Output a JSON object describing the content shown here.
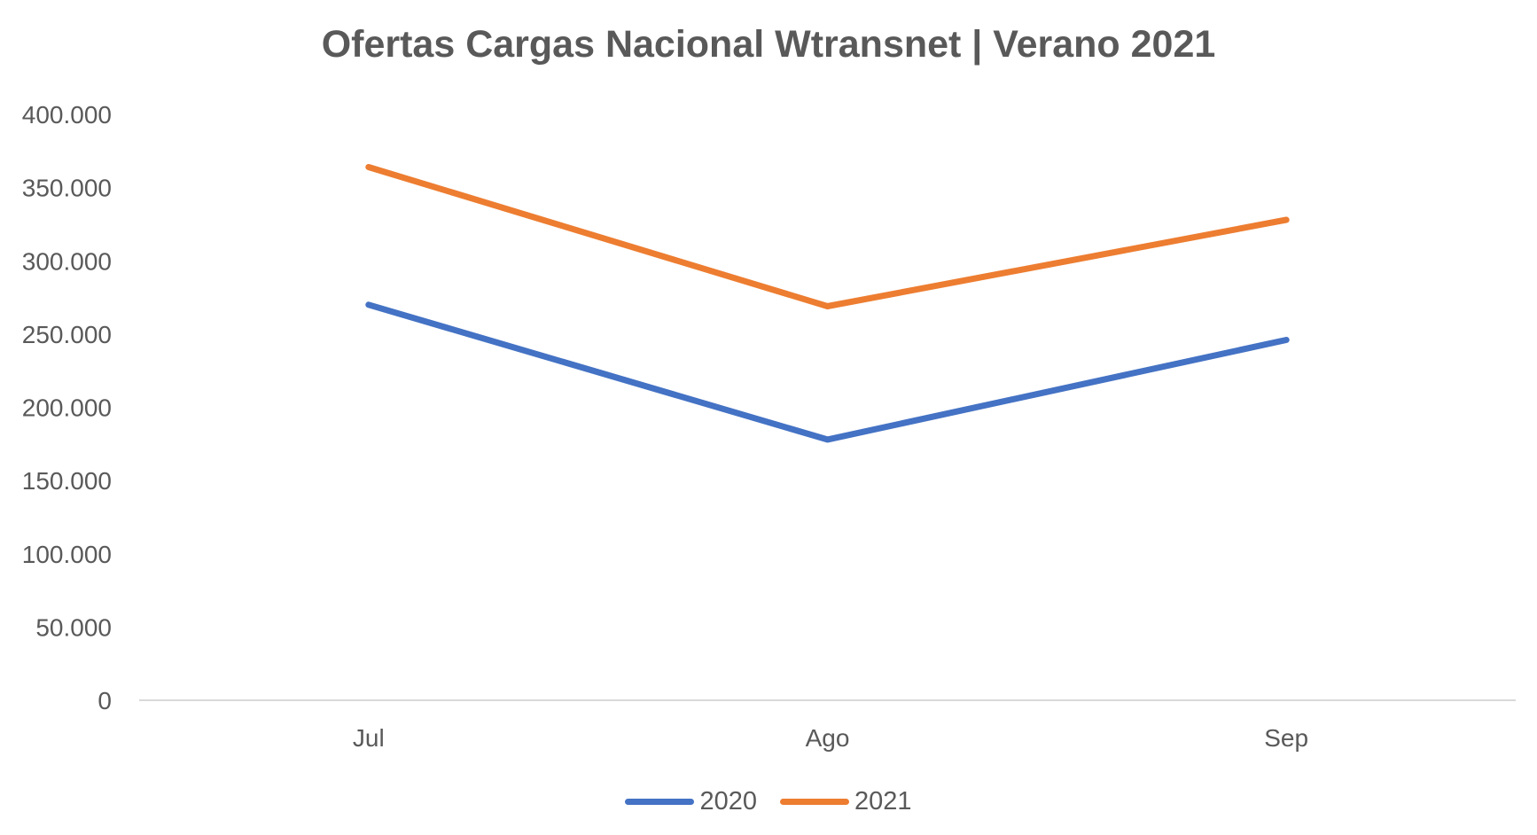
{
  "chart_data": {
    "type": "line",
    "title": "Ofertas Cargas Nacional Wtransnet | Verano 2021",
    "categories": [
      "Jul",
      "Ago",
      "Sep"
    ],
    "series": [
      {
        "name": "2020",
        "color": "#4472C4",
        "values": [
          270000,
          178000,
          246000
        ]
      },
      {
        "name": "2021",
        "color": "#ED7D31",
        "values": [
          364000,
          269000,
          328000
        ]
      }
    ],
    "yticks": [
      "0",
      "50.000",
      "100.000",
      "150.000",
      "200.000",
      "250.000",
      "300.000",
      "350.000",
      "400.000"
    ],
    "ylim": [
      0,
      400000
    ],
    "grid": false,
    "legend": "bottom",
    "xlabel": "",
    "ylabel": ""
  }
}
